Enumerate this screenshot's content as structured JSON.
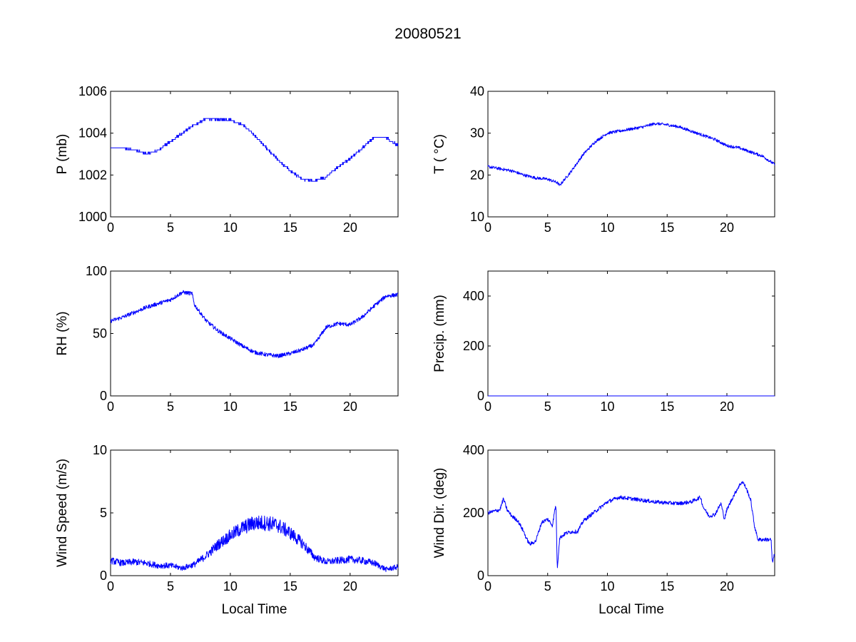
{
  "title": "20080521",
  "colors": {
    "line": "#0000ff",
    "axes": "#000000",
    "background": "#ffffff"
  },
  "chart_data": [
    {
      "type": "line",
      "ylabel": "P (mb)",
      "xlabel": "",
      "xlim": [
        0,
        24
      ],
      "ylim": [
        1000,
        1006
      ],
      "xticks": [
        0,
        5,
        10,
        15,
        20
      ],
      "yticks": [
        1000,
        1002,
        1004,
        1006
      ],
      "step": true,
      "noise": 0.05,
      "series": [
        {
          "x": [
            0,
            1,
            2,
            3,
            4,
            5,
            6,
            7,
            8,
            9,
            10,
            11,
            12,
            13,
            14,
            15,
            16,
            17,
            18,
            19,
            20,
            21,
            22,
            23,
            24
          ],
          "y": [
            1003.3,
            1003.3,
            1003.2,
            1003.0,
            1003.2,
            1003.6,
            1004.0,
            1004.4,
            1004.7,
            1004.65,
            1004.65,
            1004.4,
            1003.9,
            1003.3,
            1002.7,
            1002.2,
            1001.8,
            1001.7,
            1001.9,
            1002.4,
            1002.8,
            1003.3,
            1003.8,
            1003.8,
            1003.4
          ]
        }
      ]
    },
    {
      "type": "line",
      "ylabel": "T ( °C)",
      "xlabel": "",
      "xlim": [
        0,
        24
      ],
      "ylim": [
        10,
        40
      ],
      "xticks": [
        0,
        5,
        10,
        15,
        20
      ],
      "yticks": [
        10,
        20,
        30,
        40
      ],
      "noise": 0.35,
      "series": [
        {
          "x": [
            0,
            1,
            2,
            3,
            4,
            5,
            5.8,
            6,
            7,
            8,
            9,
            10,
            11,
            12,
            13,
            14,
            15,
            16,
            17,
            18,
            19,
            20,
            21,
            22,
            23,
            24
          ],
          "y": [
            22.0,
            21.5,
            21.0,
            20.0,
            19.3,
            19.0,
            18.2,
            17.5,
            21.0,
            25.0,
            28.0,
            30.0,
            30.5,
            31.0,
            31.5,
            32.3,
            32.0,
            31.5,
            30.5,
            29.5,
            28.5,
            27.0,
            26.5,
            25.5,
            24.5,
            22.5
          ]
        }
      ]
    },
    {
      "type": "line",
      "ylabel": "RH (%)",
      "xlabel": "",
      "xlim": [
        0,
        24
      ],
      "ylim": [
        0,
        100
      ],
      "xticks": [
        0,
        5,
        10,
        15,
        20
      ],
      "yticks": [
        0,
        50,
        100
      ],
      "noise": 1.6,
      "series": [
        {
          "x": [
            0,
            1,
            2,
            3,
            4,
            5,
            6,
            6.8,
            7,
            8,
            9,
            10,
            11,
            12,
            13,
            14,
            15,
            16,
            17,
            18,
            19,
            20,
            21,
            22,
            23,
            24
          ],
          "y": [
            60,
            63,
            67,
            71,
            74,
            77,
            83,
            82,
            73,
            60,
            52,
            46,
            40,
            35,
            33,
            32,
            34,
            37,
            41,
            55,
            58,
            57,
            63,
            72,
            80,
            81
          ]
        }
      ]
    },
    {
      "type": "line",
      "ylabel": "Precip. (mm)",
      "xlabel": "",
      "xlim": [
        0,
        24
      ],
      "ylim": [
        0,
        500
      ],
      "xticks": [
        0,
        5,
        10,
        15,
        20
      ],
      "yticks": [
        0,
        200,
        400
      ],
      "noise": 0,
      "series": [
        {
          "x": [
            0,
            24
          ],
          "y": [
            0,
            0
          ]
        }
      ]
    },
    {
      "type": "line",
      "ylabel": "Wind Speed (m/s)",
      "xlabel": "Local Time",
      "xlim": [
        0,
        24
      ],
      "ylim": [
        0,
        10
      ],
      "xticks": [
        0,
        5,
        10,
        15,
        20
      ],
      "yticks": [
        0,
        5,
        10
      ],
      "noise": 0.35,
      "spiky": true,
      "series": [
        {
          "x": [
            0,
            1,
            2,
            3,
            4,
            5,
            6,
            7,
            8,
            9,
            10,
            11,
            12,
            13,
            14,
            15,
            16,
            17,
            18,
            19,
            20,
            21,
            22,
            23,
            24
          ],
          "y": [
            1.2,
            1.0,
            1.1,
            1.0,
            0.8,
            0.8,
            0.6,
            0.9,
            1.6,
            2.5,
            3.2,
            3.8,
            4.2,
            4.2,
            4.0,
            3.4,
            2.6,
            1.5,
            1.1,
            1.2,
            1.3,
            1.2,
            1.0,
            0.5,
            0.7
          ]
        }
      ]
    },
    {
      "type": "line",
      "ylabel": "Wind Dir. (deg)",
      "xlabel": "Local Time",
      "xlim": [
        0,
        24
      ],
      "ylim": [
        0,
        400
      ],
      "xticks": [
        0,
        5,
        10,
        15,
        20
      ],
      "yticks": [
        0,
        200,
        400
      ],
      "noise": 6,
      "series": [
        {
          "x": [
            0,
            0.5,
            1,
            1.3,
            1.6,
            2,
            2.5,
            3,
            3.2,
            3.5,
            4,
            4.5,
            5,
            5.4,
            5.6,
            5.7,
            5.8,
            6,
            6.5,
            7,
            7.5,
            8,
            9,
            10,
            11,
            12,
            13,
            14,
            15,
            16,
            17,
            17.8,
            18,
            18.5,
            19,
            19.5,
            19.8,
            20,
            20.5,
            21,
            21.3,
            21.6,
            22,
            22.3,
            22.6,
            23,
            23.5,
            23.7,
            23.8,
            24
          ],
          "y": [
            200,
            205,
            210,
            245,
            210,
            190,
            175,
            140,
            120,
            100,
            110,
            170,
            180,
            160,
            210,
            225,
            20,
            120,
            135,
            140,
            140,
            175,
            205,
            235,
            250,
            245,
            240,
            235,
            232,
            230,
            235,
            250,
            220,
            190,
            195,
            230,
            180,
            210,
            250,
            285,
            300,
            280,
            240,
            160,
            115,
            115,
            115,
            115,
            40,
            70
          ]
        }
      ]
    }
  ]
}
